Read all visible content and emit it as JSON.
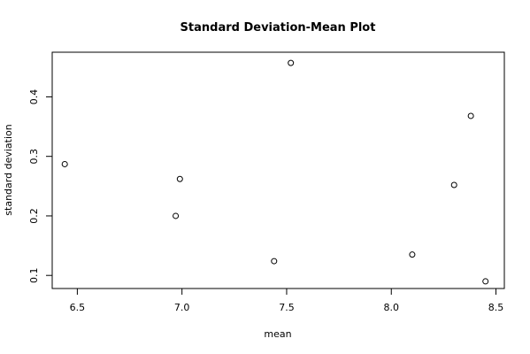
{
  "chart_data": {
    "type": "scatter",
    "title": "Standard Deviation-Mean Plot",
    "xlabel": "mean",
    "ylabel": "standard deviation",
    "xlim": [
      6.38,
      8.54
    ],
    "ylim": [
      0.078,
      0.475
    ],
    "xticks": [
      6.5,
      7.0,
      7.5,
      8.0,
      8.5
    ],
    "xtick_labels": [
      "6.5",
      "7.0",
      "7.5",
      "8.0",
      "8.5"
    ],
    "yticks": [
      0.1,
      0.2,
      0.3,
      0.4
    ],
    "ytick_labels": [
      "0.1",
      "0.2",
      "0.3",
      "0.4"
    ],
    "grid": false,
    "legend": "none",
    "points": [
      {
        "x": 6.44,
        "y": 0.287
      },
      {
        "x": 6.97,
        "y": 0.2
      },
      {
        "x": 6.99,
        "y": 0.262
      },
      {
        "x": 7.44,
        "y": 0.124
      },
      {
        "x": 7.52,
        "y": 0.457
      },
      {
        "x": 8.1,
        "y": 0.135
      },
      {
        "x": 8.3,
        "y": 0.252
      },
      {
        "x": 8.38,
        "y": 0.368
      },
      {
        "x": 8.45,
        "y": 0.09
      }
    ]
  }
}
